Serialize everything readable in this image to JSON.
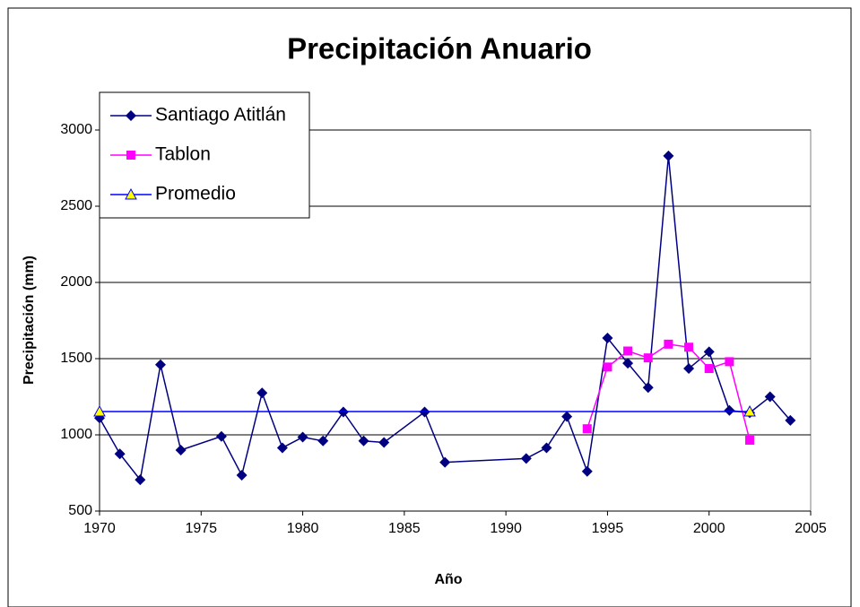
{
  "chart_data": {
    "type": "line",
    "title": "Precipitación Anuario",
    "x_label": "Año",
    "y_label": "Precipitación (mm)",
    "series": [
      {
        "name": "Santiago Atitlán",
        "color": "#000080",
        "marker": "diamond",
        "x": [
          1970,
          1971,
          1972,
          1973,
          1974,
          1976,
          1977,
          1978,
          1979,
          1980,
          1981,
          1982,
          1983,
          1984,
          1986,
          1987,
          1991,
          1992,
          1993,
          1994,
          1995,
          1996,
          1997,
          1998,
          1999,
          2000,
          2001,
          2002,
          2003,
          2004
        ],
        "values": [
          1110,
          875,
          705,
          1460,
          900,
          990,
          735,
          1275,
          915,
          985,
          960,
          1150,
          960,
          950,
          1150,
          820,
          845,
          915,
          1120,
          760,
          1635,
          1470,
          1310,
          2830,
          1435,
          1545,
          1160,
          1145,
          1250,
          1095
        ]
      },
      {
        "name": "Tablon",
        "color": "#ff00ff",
        "marker": "square",
        "x": [
          1994,
          1995,
          1996,
          1997,
          1998,
          1999,
          2000,
          2001,
          2002
        ],
        "values": [
          1040,
          1445,
          1550,
          1505,
          1595,
          1575,
          1435,
          1480,
          965
        ]
      },
      {
        "name": "Promedio",
        "color": "#0000ff",
        "marker": "triangle",
        "marker_fill": "#ffff00",
        "x": [
          1970,
          2002
        ],
        "values": [
          1153,
          1153
        ]
      }
    ],
    "xlim": [
      1970,
      2005
    ],
    "xticks": [
      1970,
      1975,
      1980,
      1985,
      1990,
      1995,
      2000,
      2005
    ],
    "ylim": [
      500,
      3000
    ],
    "yticks": [
      500,
      1000,
      1500,
      2000,
      2500,
      3000
    ],
    "grid": true,
    "legend": "top-left"
  }
}
